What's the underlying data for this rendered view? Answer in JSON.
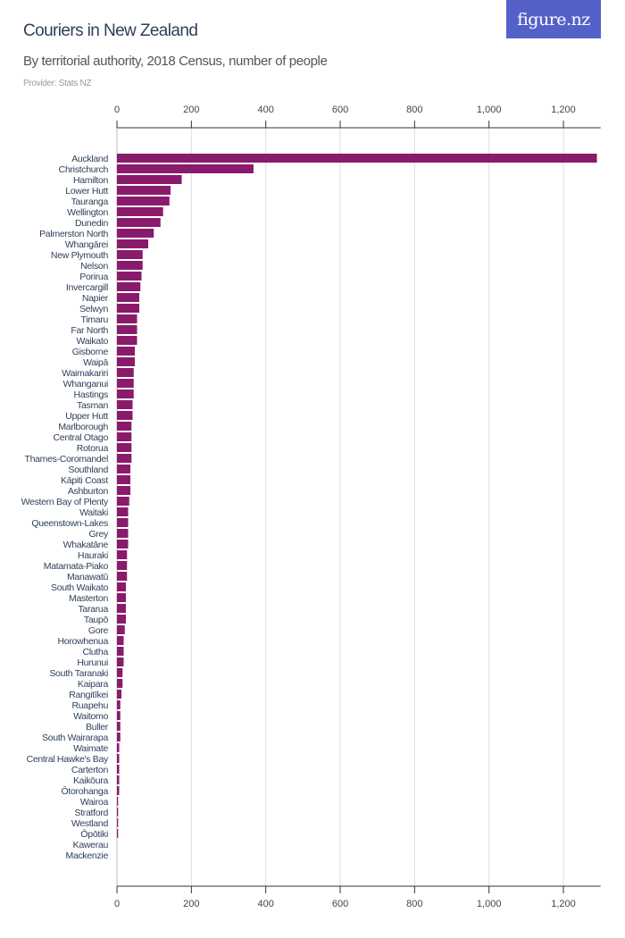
{
  "header": {
    "title": "Couriers in New Zealand",
    "subtitle": "By territorial authority, 2018 Census, number of people",
    "provider": "Provider: Stats NZ",
    "logo_text": "figure.nz"
  },
  "colors": {
    "bar": "#8a1a6b",
    "grid": "#dddddd",
    "axis": "#333333",
    "label": "#2e3f5c",
    "logo_bg": "#5561c9"
  },
  "chart_data": {
    "type": "bar",
    "orientation": "horizontal",
    "title": "Couriers in New Zealand",
    "subtitle": "By territorial authority, 2018 Census, number of people",
    "xlim": [
      0,
      1300
    ],
    "ticks": [
      0,
      200,
      400,
      600,
      800,
      1000,
      1200
    ],
    "tick_labels": [
      "0",
      "200",
      "400",
      "600",
      "800",
      "1,000",
      "1,200"
    ],
    "grid": true,
    "axis_position": "top and bottom",
    "categories": [
      "Auckland",
      "Christchurch",
      "Hamilton",
      "Lower Hutt",
      "Tauranga",
      "Wellington",
      "Dunedin",
      "Palmerston North",
      "Whangārei",
      "New Plymouth",
      "Nelson",
      "Porirua",
      "Invercargill",
      "Napier",
      "Selwyn",
      "Timaru",
      "Far North",
      "Waikato",
      "Gisborne",
      "Waipā",
      "Waimakariri",
      "Whanganui",
      "Hastings",
      "Tasman",
      "Upper Hutt",
      "Marlborough",
      "Central Otago",
      "Rotorua",
      "Thames-Coromandel",
      "Southland",
      "Kāpiti Coast",
      "Ashburton",
      "Western Bay of Plenty",
      "Waitaki",
      "Queenstown-Lakes",
      "Grey",
      "Whakatāne",
      "Hauraki",
      "Matamata-Piako",
      "Manawatū",
      "South Waikato",
      "Masterton",
      "Tararua",
      "Taupō",
      "Gore",
      "Horowhenua",
      "Clutha",
      "Hurunui",
      "South Taranaki",
      "Kaipara",
      "Rangitīkei",
      "Ruapehu",
      "Waitomo",
      "Buller",
      "South Wairarapa",
      "Waimate",
      "Central Hawke's Bay",
      "Carterton",
      "Kaikōura",
      "Ōtorohanga",
      "Wairoa",
      "Stratford",
      "Westland",
      "Ōpōtiki",
      "Kawerau",
      "Mackenzie"
    ],
    "values": [
      1290,
      367,
      174,
      144,
      141,
      124,
      117,
      99,
      84,
      69,
      69,
      66,
      63,
      60,
      60,
      54,
      54,
      54,
      48,
      48,
      45,
      45,
      45,
      42,
      42,
      39,
      39,
      39,
      39,
      36,
      36,
      36,
      33,
      30,
      30,
      30,
      30,
      27,
      27,
      27,
      24,
      24,
      24,
      24,
      21,
      18,
      18,
      18,
      15,
      15,
      12,
      9,
      9,
      9,
      9,
      6,
      6,
      6,
      6,
      6,
      3,
      3,
      3,
      3,
      0,
      0
    ]
  }
}
